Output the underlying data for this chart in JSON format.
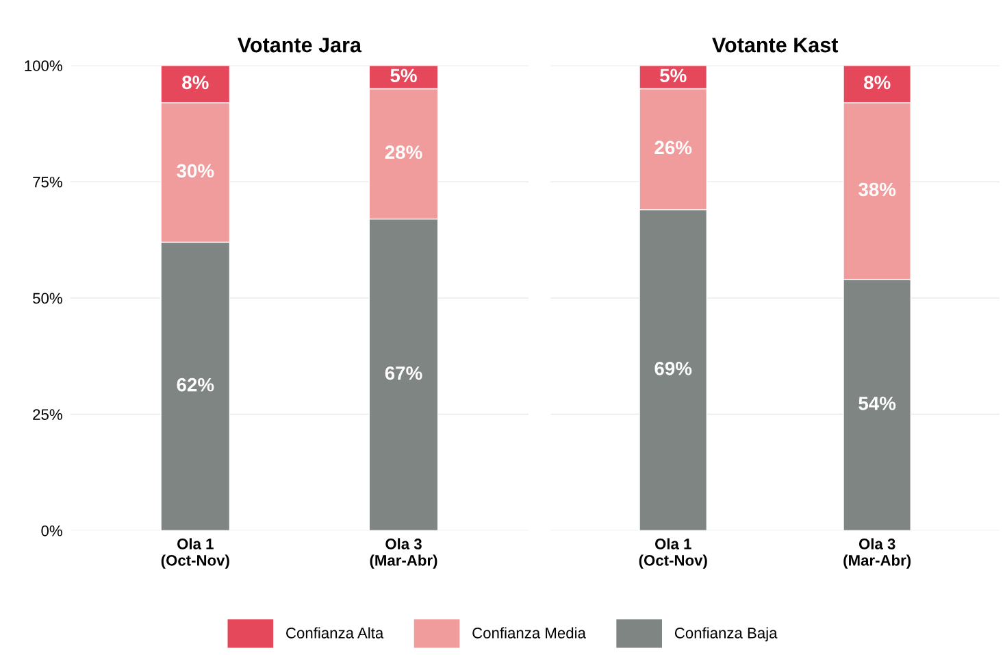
{
  "chart_data": [
    {
      "type": "bar",
      "title": "Votante Jara",
      "categories": [
        "Ola 1\n(Oct-Nov)",
        "Ola 3\n(Mar-Abr)"
      ],
      "stacked": true,
      "series": [
        {
          "color": "#7f8582",
          "values": [
            62,
            67
          ],
          "value_labels": [
            "62%",
            "67%"
          ]
        },
        {
          "color": "#f19c9c",
          "values": [
            30,
            28
          ],
          "value_labels": [
            "30%",
            "28%"
          ]
        },
        {
          "color": "#e5485a",
          "values": [
            8,
            5
          ],
          "value_labels": [
            "8%",
            "5%"
          ]
        }
      ],
      "ylim": [
        0,
        100
      ],
      "yticks": [
        {
          "value": 0,
          "label": "0%"
        },
        {
          "value": 25,
          "label": "25%"
        },
        {
          "value": 50,
          "label": "50%"
        },
        {
          "value": 75,
          "label": "75%"
        },
        {
          "value": 100,
          "label": "100%"
        }
      ],
      "grid": "y"
    },
    {
      "type": "bar",
      "title": "Votante Kast",
      "categories": [
        "Ola 1\n(Oct-Nov)",
        "Ola 3\n(Mar-Abr)"
      ],
      "stacked": true,
      "series": [
        {
          "name": "Confianza Baja",
          "color": "#7f8582",
          "values": [
            69,
            54
          ],
          "value_labels": [
            "69%",
            "54%"
          ]
        },
        {
          "name": "Confianza Media",
          "color": "#f19c9c",
          "values": [
            26,
            38
          ],
          "value_labels": [
            "26%",
            "38%"
          ]
        },
        {
          "name": "Confianza Alta",
          "color": "#e5485a",
          "values": [
            5,
            8
          ],
          "value_labels": [
            "5%",
            "8%"
          ]
        }
      ],
      "ylim": [
        0,
        100
      ],
      "yticks": [
        {
          "value": 0,
          "label": null
        },
        {
          "value": 25,
          "label": null
        },
        {
          "value": 50,
          "label": null
        },
        {
          "value": 75,
          "label": null
        },
        {
          "value": 100,
          "label": null
        }
      ],
      "grid": "y",
      "tick_labels": "x",
      "legend": "bottom"
    }
  ]
}
